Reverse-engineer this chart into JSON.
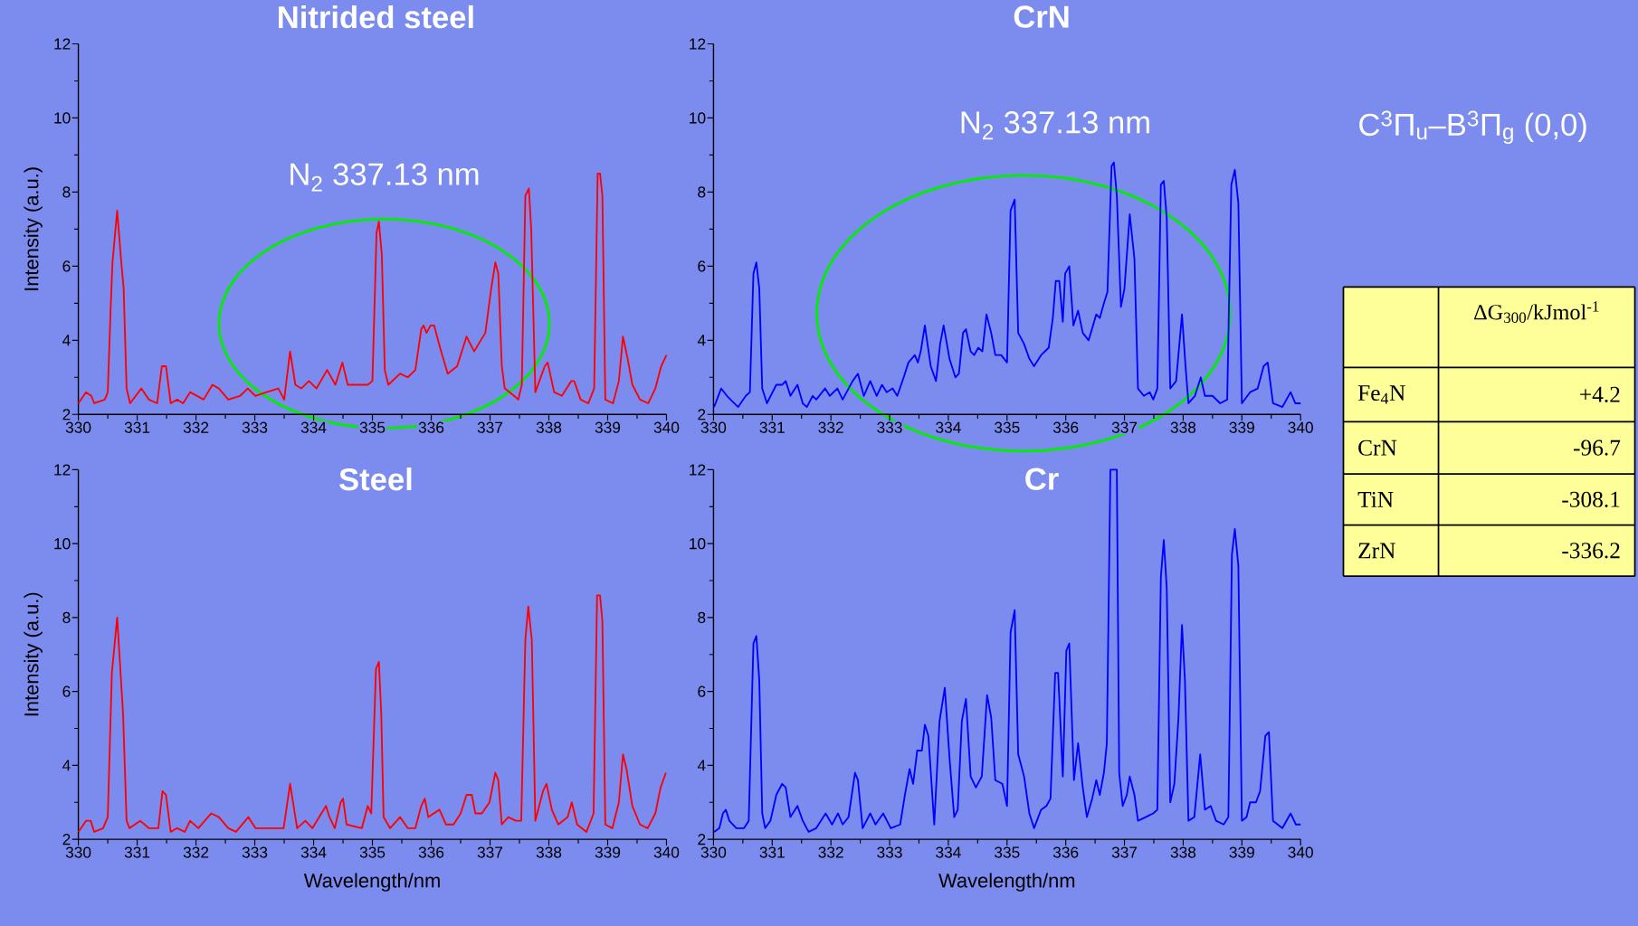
{
  "chart_data": [
    {
      "type": "line",
      "title": "Nitrided steel",
      "ylabel": "Intensity (a.u.)",
      "annotations": [
        "N$_{2}$ 337.13 nm"
      ],
      "xlim": [
        330,
        340
      ],
      "ylim": [
        2,
        12
      ],
      "xticks": [
        330,
        {
          "value": 330.5,
          "label": null
        },
        331,
        {
          "value": 331.5,
          "label": null
        },
        332,
        {
          "value": 332.5,
          "label": null
        },
        333,
        {
          "value": 333.5,
          "label": null
        },
        334,
        {
          "value": 334.5,
          "label": null
        },
        335,
        {
          "value": 335.5,
          "label": null
        },
        336,
        {
          "value": 336.5,
          "label": null
        },
        337,
        {
          "value": 337.5,
          "label": null
        },
        338,
        {
          "value": 338.5,
          "label": null
        },
        339,
        {
          "value": 339.5,
          "label": null
        },
        340
      ],
      "yticks": [
        2,
        {
          "value": 3,
          "label": null
        },
        4,
        {
          "value": 5,
          "label": null
        },
        6,
        {
          "value": 7,
          "label": null
        },
        8,
        {
          "value": 9,
          "label": null
        },
        10,
        {
          "value": 11,
          "label": null
        },
        12
      ],
      "x": [
        330.0,
        330.13,
        330.22,
        330.27,
        330.45,
        330.5,
        330.55,
        330.58,
        330.66,
        330.73,
        330.77,
        330.82,
        330.88,
        331.07,
        331.2,
        331.34,
        331.42,
        331.49,
        331.57,
        331.68,
        331.78,
        331.9,
        332.13,
        332.28,
        332.39,
        332.55,
        332.75,
        332.88,
        333.01,
        333.2,
        333.4,
        333.5,
        333.6,
        333.69,
        333.79,
        333.92,
        334.05,
        334.23,
        334.37,
        334.49,
        334.58,
        334.72,
        334.92,
        335.0,
        335.07,
        335.11,
        335.16,
        335.21,
        335.27,
        335.47,
        335.6,
        335.73,
        335.83,
        335.87,
        335.92,
        335.99,
        336.05,
        336.15,
        336.28,
        336.44,
        336.6,
        336.73,
        336.92,
        337.02,
        337.09,
        337.14,
        337.2,
        337.25,
        337.41,
        337.48,
        337.54,
        337.6,
        337.66,
        337.7,
        337.77,
        337.93,
        337.98,
        338.09,
        338.22,
        338.38,
        338.43,
        338.54,
        338.67,
        338.77,
        338.83,
        338.87,
        338.91,
        338.96,
        339.09,
        339.19,
        339.26,
        339.34,
        339.42,
        339.55,
        339.69,
        339.81,
        339.91,
        340.0
      ],
      "series": [
        {
          "color": "#ff0000",
          "values": [
            2.3,
            2.6,
            2.5,
            2.3,
            2.4,
            2.6,
            4.9,
            6.1,
            7.5,
            6.1,
            5.4,
            2.7,
            2.3,
            2.7,
            2.4,
            2.3,
            3.3,
            3.3,
            2.3,
            2.4,
            2.3,
            2.6,
            2.4,
            2.8,
            2.7,
            2.4,
            2.5,
            2.7,
            2.5,
            2.6,
            2.7,
            2.4,
            3.7,
            2.8,
            2.7,
            2.9,
            2.7,
            3.2,
            2.8,
            3.4,
            2.8,
            2.8,
            2.8,
            2.9,
            6.9,
            7.2,
            6.3,
            3.2,
            2.8,
            3.1,
            3.0,
            3.2,
            4.3,
            4.4,
            4.2,
            4.4,
            4.4,
            3.8,
            3.1,
            3.3,
            4.1,
            3.7,
            4.2,
            5.4,
            6.1,
            5.8,
            3.3,
            2.7,
            2.5,
            2.4,
            2.8,
            7.9,
            8.1,
            7.0,
            2.6,
            3.3,
            3.4,
            2.6,
            2.5,
            2.9,
            2.9,
            2.4,
            2.3,
            2.7,
            8.5,
            8.5,
            7.9,
            2.4,
            2.3,
            2.9,
            4.1,
            3.5,
            2.8,
            2.4,
            2.3,
            2.7,
            3.3,
            3.6
          ]
        }
      ]
    },
    {
      "type": "line",
      "title": "CrN",
      "annotations": [
        "N$_{2}$ 337.13 nm"
      ],
      "xlim": [
        330,
        340
      ],
      "ylim": [
        2,
        12
      ],
      "xticks": [
        330,
        {
          "value": 330.5,
          "label": null
        },
        331,
        {
          "value": 331.5,
          "label": null
        },
        332,
        {
          "value": 332.5,
          "label": null
        },
        333,
        {
          "value": 333.5,
          "label": null
        },
        334,
        {
          "value": 334.5,
          "label": null
        },
        335,
        {
          "value": 335.5,
          "label": null
        },
        336,
        {
          "value": 336.5,
          "label": null
        },
        337,
        {
          "value": 337.5,
          "label": null
        },
        338,
        {
          "value": 338.5,
          "label": null
        },
        339,
        {
          "value": 339.5,
          "label": null
        },
        340
      ],
      "yticks": [
        2,
        {
          "value": 3,
          "label": null
        },
        4,
        {
          "value": 5,
          "label": null
        },
        6,
        {
          "value": 7,
          "label": null
        },
        8,
        {
          "value": 9,
          "label": null
        },
        10,
        {
          "value": 11,
          "label": null
        },
        12
      ],
      "x": [
        330.01,
        330.13,
        330.23,
        330.29,
        330.42,
        330.55,
        330.62,
        330.68,
        330.73,
        330.78,
        330.83,
        330.91,
        331.07,
        331.17,
        331.23,
        331.31,
        331.43,
        331.52,
        331.59,
        331.69,
        331.75,
        331.9,
        331.98,
        332.11,
        332.2,
        332.37,
        332.46,
        332.56,
        332.67,
        332.78,
        332.87,
        332.95,
        333.05,
        333.13,
        333.24,
        333.32,
        333.43,
        333.48,
        333.53,
        333.6,
        333.7,
        333.79,
        333.86,
        333.92,
        334.02,
        334.12,
        334.18,
        334.25,
        334.3,
        334.38,
        334.44,
        334.51,
        334.58,
        334.65,
        334.73,
        334.8,
        334.9,
        335.0,
        335.06,
        335.13,
        335.19,
        335.29,
        335.38,
        335.46,
        335.58,
        335.71,
        335.78,
        335.83,
        335.89,
        335.95,
        335.99,
        336.06,
        336.13,
        336.21,
        336.29,
        336.39,
        336.52,
        336.58,
        336.65,
        336.71,
        336.78,
        336.82,
        336.87,
        336.94,
        337.0,
        337.09,
        337.17,
        337.23,
        337.33,
        337.43,
        337.49,
        337.56,
        337.62,
        337.67,
        337.72,
        337.78,
        337.88,
        337.98,
        338.04,
        338.09,
        338.2,
        338.3,
        338.37,
        338.5,
        338.63,
        338.75,
        338.82,
        338.88,
        338.94,
        339.0,
        339.14,
        339.27,
        339.37,
        339.44,
        339.53,
        339.69,
        339.83,
        339.91,
        340.0
      ],
      "series": [
        {
          "color": "#0000ff",
          "values": [
            2.2,
            2.7,
            2.5,
            2.4,
            2.2,
            2.5,
            2.6,
            5.8,
            6.1,
            5.4,
            2.7,
            2.3,
            2.8,
            2.8,
            2.9,
            2.5,
            2.8,
            2.3,
            2.2,
            2.5,
            2.4,
            2.7,
            2.5,
            2.7,
            2.4,
            2.9,
            3.1,
            2.5,
            2.9,
            2.5,
            2.8,
            2.6,
            2.7,
            2.5,
            3.0,
            3.4,
            3.6,
            3.4,
            3.7,
            4.4,
            3.3,
            2.9,
            3.9,
            4.4,
            3.5,
            3.0,
            3.1,
            4.2,
            4.3,
            3.7,
            3.6,
            3.8,
            3.7,
            4.7,
            4.2,
            3.6,
            3.6,
            3.4,
            7.5,
            7.8,
            4.2,
            3.9,
            3.5,
            3.3,
            3.6,
            3.8,
            4.6,
            5.6,
            5.6,
            4.5,
            5.8,
            6.0,
            4.4,
            4.8,
            4.2,
            4.0,
            4.7,
            4.6,
            5.0,
            5.3,
            8.7,
            8.8,
            7.9,
            4.9,
            5.4,
            7.4,
            6.2,
            2.7,
            2.5,
            2.6,
            2.4,
            2.7,
            8.2,
            8.3,
            7.3,
            2.7,
            2.9,
            4.7,
            3.3,
            2.3,
            2.5,
            3.0,
            2.5,
            2.5,
            2.3,
            2.4,
            8.2,
            8.6,
            7.7,
            2.3,
            2.6,
            2.7,
            3.3,
            3.4,
            2.3,
            2.2,
            2.6,
            2.3,
            2.3
          ]
        }
      ]
    },
    {
      "type": "line",
      "title": "Steel",
      "xlabel": "Wavelength/nm",
      "ylabel": "Intensity (a.u.)",
      "xlim": [
        330,
        340
      ],
      "ylim": [
        2,
        12
      ],
      "xticks": [
        330,
        {
          "value": 330.5,
          "label": null
        },
        331,
        {
          "value": 331.5,
          "label": null
        },
        332,
        {
          "value": 332.5,
          "label": null
        },
        333,
        {
          "value": 333.5,
          "label": null
        },
        334,
        {
          "value": 334.5,
          "label": null
        },
        335,
        {
          "value": 335.5,
          "label": null
        },
        336,
        {
          "value": 336.5,
          "label": null
        },
        337,
        {
          "value": 337.5,
          "label": null
        },
        338,
        {
          "value": 338.5,
          "label": null
        },
        339,
        {
          "value": 339.5,
          "label": null
        },
        340
      ],
      "yticks": [
        2,
        {
          "value": 3,
          "label": null
        },
        4,
        {
          "value": 5,
          "label": null
        },
        6,
        {
          "value": 7,
          "label": null
        },
        8,
        {
          "value": 9,
          "label": null
        },
        10,
        {
          "value": 11,
          "label": null
        },
        12
      ],
      "x": [
        330.0,
        330.13,
        330.21,
        330.27,
        330.42,
        330.5,
        330.57,
        330.66,
        330.71,
        330.76,
        330.82,
        330.87,
        331.05,
        331.2,
        331.36,
        331.43,
        331.49,
        331.57,
        331.68,
        331.81,
        331.9,
        332.04,
        332.26,
        332.39,
        332.55,
        332.68,
        332.89,
        333.01,
        333.2,
        333.43,
        333.49,
        333.6,
        333.72,
        333.86,
        333.98,
        334.21,
        334.27,
        334.36,
        334.46,
        334.5,
        334.56,
        334.82,
        334.92,
        334.98,
        335.06,
        335.11,
        335.15,
        335.19,
        335.3,
        335.47,
        335.6,
        335.73,
        335.83,
        335.89,
        335.95,
        336.14,
        336.25,
        336.38,
        336.5,
        336.6,
        336.69,
        336.75,
        336.86,
        336.99,
        337.09,
        337.14,
        337.2,
        337.31,
        337.44,
        337.53,
        337.6,
        337.65,
        337.71,
        337.77,
        337.9,
        337.96,
        338.05,
        338.16,
        338.32,
        338.39,
        338.48,
        338.64,
        338.76,
        338.82,
        338.87,
        338.91,
        338.96,
        339.08,
        339.19,
        339.26,
        339.32,
        339.42,
        339.55,
        339.68,
        339.81,
        339.9,
        339.99
      ],
      "series": [
        {
          "color": "#ff0000",
          "values": [
            2.2,
            2.5,
            2.5,
            2.2,
            2.3,
            2.6,
            6.5,
            8.0,
            6.7,
            5.4,
            2.5,
            2.3,
            2.5,
            2.3,
            2.3,
            3.3,
            3.2,
            2.2,
            2.3,
            2.2,
            2.5,
            2.3,
            2.7,
            2.6,
            2.3,
            2.2,
            2.6,
            2.3,
            2.3,
            2.3,
            2.3,
            3.5,
            2.3,
            2.5,
            2.3,
            2.9,
            2.6,
            2.3,
            3.0,
            3.1,
            2.4,
            2.3,
            2.9,
            2.7,
            6.6,
            6.8,
            5.4,
            2.6,
            2.3,
            2.6,
            2.3,
            2.3,
            2.9,
            3.1,
            2.6,
            2.8,
            2.4,
            2.4,
            2.7,
            3.2,
            3.2,
            2.7,
            2.7,
            3.0,
            3.8,
            3.6,
            2.4,
            2.6,
            2.5,
            2.5,
            7.4,
            8.3,
            7.4,
            2.5,
            3.3,
            3.5,
            2.8,
            2.4,
            2.6,
            3.0,
            2.4,
            2.2,
            2.7,
            8.6,
            8.6,
            7.9,
            2.4,
            2.3,
            3.0,
            4.3,
            3.9,
            2.9,
            2.4,
            2.3,
            2.7,
            3.4,
            3.8
          ]
        }
      ]
    },
    {
      "type": "line",
      "title": "Cr",
      "xlabel": "Wavelength/nm",
      "xlim": [
        330,
        340
      ],
      "ylim": [
        2,
        12
      ],
      "xticks": [
        330,
        {
          "value": 330.5,
          "label": null
        },
        331,
        {
          "value": 331.5,
          "label": null
        },
        332,
        {
          "value": 332.5,
          "label": null
        },
        333,
        {
          "value": 333.5,
          "label": null
        },
        334,
        {
          "value": 334.5,
          "label": null
        },
        335,
        {
          "value": 335.5,
          "label": null
        },
        336,
        {
          "value": 336.5,
          "label": null
        },
        337,
        {
          "value": 337.5,
          "label": null
        },
        338,
        {
          "value": 338.5,
          "label": null
        },
        339,
        {
          "value": 339.5,
          "label": null
        },
        340
      ],
      "yticks": [
        2,
        {
          "value": 3,
          "label": null
        },
        4,
        {
          "value": 5,
          "label": null
        },
        6,
        {
          "value": 7,
          "label": null
        },
        8,
        {
          "value": 9,
          "label": null
        },
        10,
        {
          "value": 11,
          "label": null
        },
        12
      ],
      "x": [
        330.01,
        330.1,
        330.16,
        330.21,
        330.27,
        330.39,
        330.52,
        330.6,
        330.68,
        330.73,
        330.78,
        330.83,
        330.88,
        330.97,
        331.07,
        331.17,
        331.23,
        331.31,
        331.43,
        331.52,
        331.62,
        331.75,
        331.91,
        332.02,
        332.12,
        332.2,
        332.3,
        332.41,
        332.46,
        332.54,
        332.67,
        332.76,
        332.89,
        333.02,
        333.18,
        333.26,
        333.34,
        333.4,
        333.47,
        333.55,
        333.6,
        333.66,
        333.76,
        333.85,
        333.94,
        334.02,
        334.1,
        334.16,
        334.23,
        334.3,
        334.38,
        334.47,
        334.57,
        334.66,
        334.73,
        334.8,
        334.92,
        335.0,
        335.06,
        335.13,
        335.19,
        335.29,
        335.38,
        335.46,
        335.58,
        335.67,
        335.74,
        335.82,
        335.87,
        335.95,
        336.01,
        336.06,
        336.14,
        336.21,
        336.29,
        336.36,
        336.45,
        336.52,
        336.58,
        336.65,
        336.7,
        336.76,
        336.87,
        336.91,
        336.97,
        337.04,
        337.09,
        337.17,
        337.23,
        337.36,
        337.49,
        337.56,
        337.62,
        337.67,
        337.72,
        337.78,
        337.85,
        337.92,
        337.98,
        338.03,
        338.09,
        338.19,
        338.29,
        338.37,
        338.47,
        338.56,
        338.69,
        338.77,
        338.83,
        338.88,
        338.94,
        339.0,
        339.08,
        339.14,
        339.24,
        339.31,
        339.4,
        339.46,
        339.53,
        339.69,
        339.83,
        339.92,
        340.0
      ],
      "series": [
        {
          "color": "#0000ff",
          "values": [
            2.2,
            2.3,
            2.7,
            2.8,
            2.5,
            2.3,
            2.3,
            2.5,
            7.3,
            7.5,
            6.3,
            2.7,
            2.3,
            2.5,
            3.2,
            3.5,
            3.4,
            2.6,
            2.9,
            2.5,
            2.2,
            2.3,
            2.7,
            2.4,
            2.7,
            2.4,
            2.6,
            3.8,
            3.6,
            2.3,
            2.7,
            2.4,
            2.7,
            2.3,
            2.4,
            3.2,
            3.9,
            3.5,
            4.4,
            4.4,
            5.1,
            4.8,
            2.4,
            5.2,
            6.1,
            4.2,
            2.6,
            2.8,
            5.2,
            5.8,
            3.7,
            3.4,
            3.7,
            5.9,
            5.3,
            3.6,
            3.5,
            2.9,
            7.6,
            8.2,
            4.3,
            3.7,
            2.7,
            2.3,
            2.8,
            2.9,
            3.1,
            6.5,
            6.5,
            3.7,
            7.1,
            7.3,
            3.6,
            4.6,
            3.4,
            2.6,
            3.1,
            3.6,
            3.2,
            3.8,
            4.6,
            12.0,
            12.0,
            3.8,
            2.9,
            3.2,
            3.7,
            3.2,
            2.5,
            2.6,
            2.7,
            2.8,
            9.1,
            10.1,
            8.8,
            3.0,
            3.5,
            5.3,
            7.8,
            6.3,
            2.5,
            2.6,
            4.3,
            2.8,
            2.9,
            2.5,
            2.4,
            2.6,
            9.7,
            10.4,
            9.4,
            2.5,
            2.6,
            3.0,
            3.0,
            3.3,
            4.8,
            4.9,
            2.5,
            2.3,
            2.7,
            2.4,
            2.4
          ]
        }
      ]
    },
    {
      "type": "other",
      "title": "C$^{3}$Π$_{u}$–B$^{3}$Π$_{g}$ (0,0)",
      "categories": [
        "Fe$_{4}$N",
        "CrN",
        "TiN",
        "ZrN"
      ],
      "series": [
        {
          "name": "ΔG$_{300}$/kJmol$^{-1}$",
          "values": [
            4.2,
            -96.7,
            -308.1,
            -336.2
          ],
          "value_labels": [
            "+4.2",
            "-96.7",
            "-308.1",
            "-336.2"
          ]
        }
      ]
    }
  ]
}
